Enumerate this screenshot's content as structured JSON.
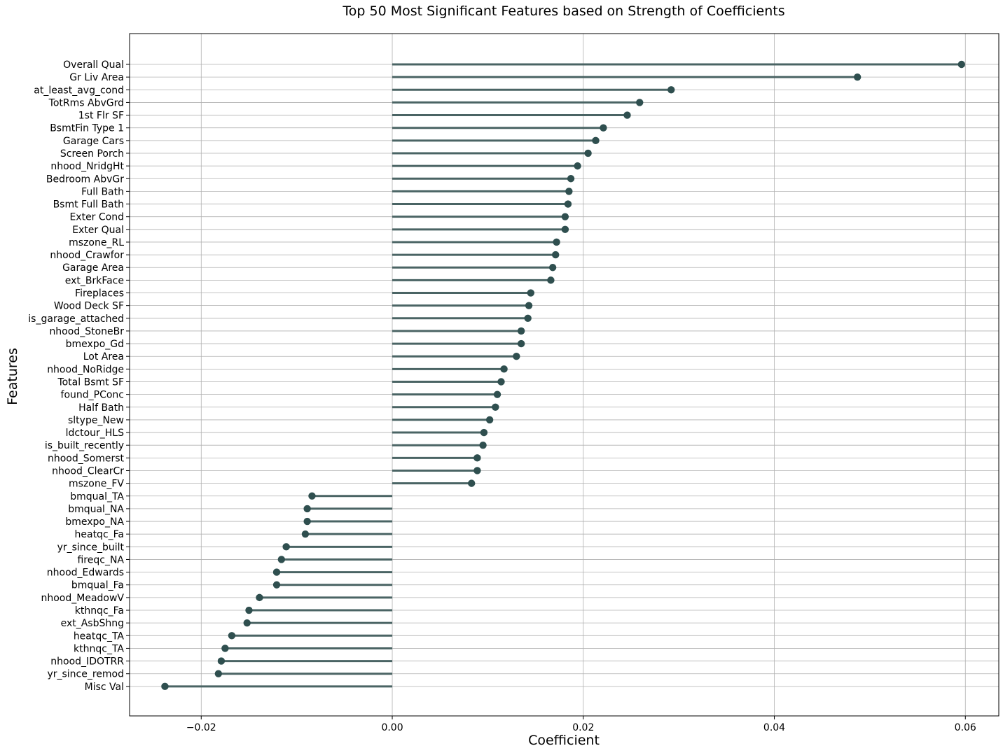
{
  "chart_data": {
    "type": "lollipop",
    "title": "Top 50 Most Significant Features based on Strength of Coefficients",
    "xlabel": "Coefficient",
    "ylabel": "Features",
    "xlim": [
      -0.0275,
      0.0635
    ],
    "xticks": [
      -0.02,
      0.0,
      0.02,
      0.04,
      0.06
    ],
    "xtick_labels": [
      "−0.02",
      "0.00",
      "0.02",
      "0.04",
      "0.06"
    ],
    "grid": true,
    "colors": {
      "stem": "#4a6464",
      "marker": "#2f4f4f"
    },
    "categories": [
      "Overall Qual",
      "Gr Liv Area",
      "at_least_avg_cond",
      "TotRms AbvGrd",
      "1st Flr SF",
      "BsmtFin Type 1",
      "Garage Cars",
      "Screen Porch",
      "nhood_NridgHt",
      "Bedroom AbvGr",
      "Full Bath",
      "Bsmt Full Bath",
      "Exter Cond",
      "Exter Qual",
      "mszone_RL",
      "nhood_Crawfor",
      "Garage Area",
      "ext_BrkFace",
      "Fireplaces",
      "Wood Deck SF",
      "is_garage_attached",
      "nhood_StoneBr",
      "bmexpo_Gd",
      "Lot Area",
      "nhood_NoRidge",
      "Total Bsmt SF",
      "found_PConc",
      "Half Bath",
      "sltype_New",
      "ldctour_HLS",
      "is_built_recently",
      "nhood_Somerst",
      "nhood_ClearCr",
      "mszone_FV",
      "bmqual_TA",
      "bmqual_NA",
      "bmexpo_NA",
      "heatqc_Fa",
      "yr_since_built",
      "fireqc_NA",
      "nhood_Edwards",
      "bmqual_Fa",
      "nhood_MeadowV",
      "kthnqc_Fa",
      "ext_AsbShng",
      "heatqc_TA",
      "kthnqc_TA",
      "nhood_IDOTRR",
      "yr_since_remod",
      "Misc Val"
    ],
    "values": [
      0.0596,
      0.0487,
      0.0292,
      0.0259,
      0.0246,
      0.0221,
      0.0213,
      0.0205,
      0.0194,
      0.0187,
      0.0185,
      0.0184,
      0.0181,
      0.0181,
      0.0172,
      0.0171,
      0.0168,
      0.0166,
      0.0145,
      0.0143,
      0.0142,
      0.0135,
      0.0135,
      0.013,
      0.0117,
      0.0114,
      0.011,
      0.0108,
      0.0102,
      0.0096,
      0.0095,
      0.0089,
      0.0089,
      0.0083,
      -0.0084,
      -0.0089,
      -0.0089,
      -0.0091,
      -0.0111,
      -0.0116,
      -0.0121,
      -0.0121,
      -0.0139,
      -0.015,
      -0.0152,
      -0.0168,
      -0.0175,
      -0.0179,
      -0.0182,
      -0.0238
    ]
  }
}
